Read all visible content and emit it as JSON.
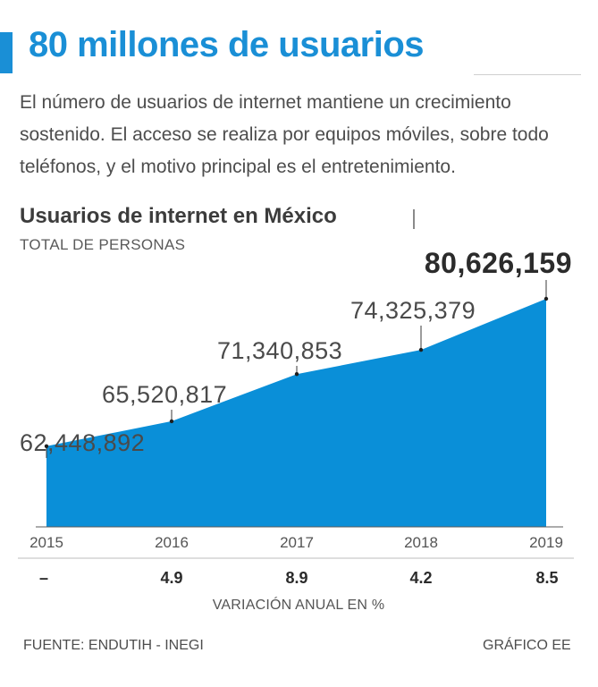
{
  "headline": "80 millones de usuarios",
  "intro": "El número de usuarios de internet mantiene un crecimiento sostenido. El acceso se realiza por equipos móviles, sobre todo teléfonos, y el motivo principal es el entretenimiento.",
  "footer": {
    "source": "FUENTE: ENDUTIH - INEGI",
    "credit": "GRÁFICO EE"
  },
  "chart_data": {
    "type": "area",
    "title": "Usuarios de internet en México",
    "subtitle": "TOTAL DE PERSONAS",
    "x": [
      "2015",
      "2016",
      "2017",
      "2018",
      "2019"
    ],
    "series": [
      {
        "values": [
          62448892,
          65520817,
          71340853,
          74325379,
          80626159
        ],
        "labels": [
          "62,448,892",
          "65,520,817",
          "71,340,853",
          "74,325,379",
          "80,626,159"
        ],
        "color": "#0a8fd8"
      }
    ],
    "ylim": [
      52500000,
      80626159
    ],
    "grid": false,
    "variation": {
      "label": "VARIACIÓN ANUAL EN %",
      "values": [
        "–",
        "4.9",
        "8.9",
        "4.2",
        "8.5"
      ]
    },
    "colors": {
      "area": "#0a8fd8",
      "headline": "#1a8fd6"
    }
  }
}
